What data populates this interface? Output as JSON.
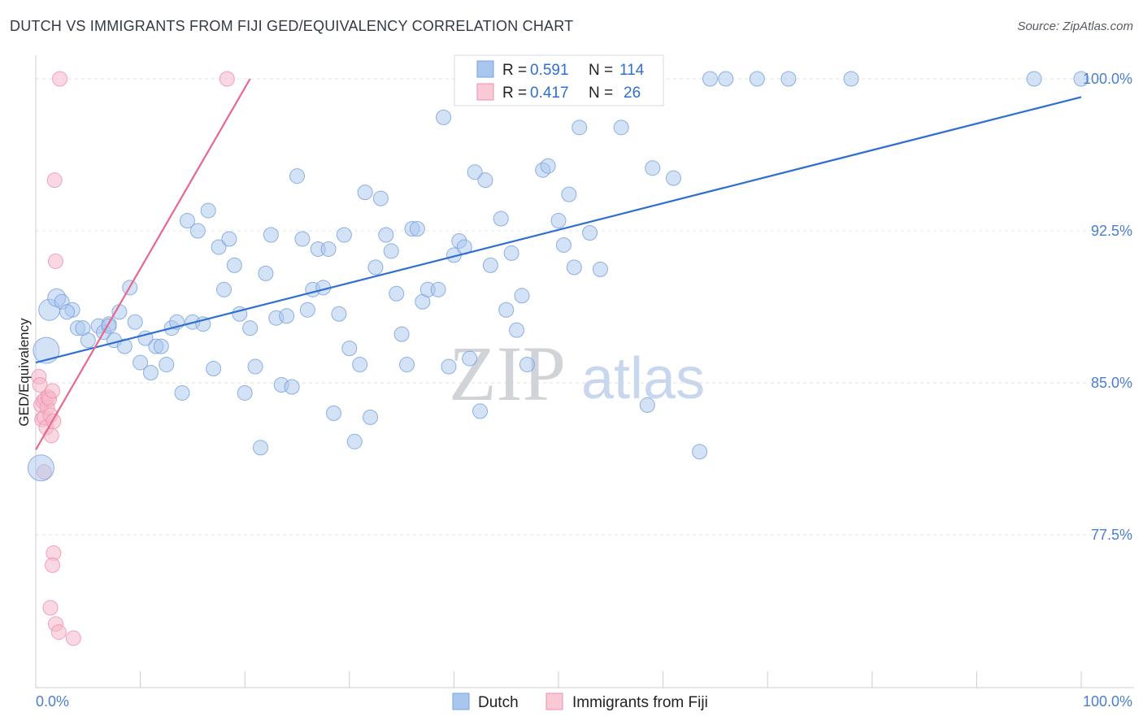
{
  "title": "DUTCH VS IMMIGRANTS FROM FIJI GED/EQUIVALENCY CORRELATION CHART",
  "source": "Source: ZipAtlas.com",
  "watermark": {
    "zip": "ZIP",
    "atlas": "atlas"
  },
  "legend": {
    "r_label": "R =",
    "n_label": "N =",
    "dutch": {
      "r": "0.591",
      "n": "114"
    },
    "fiji": {
      "r": "0.417",
      "n": "26"
    }
  },
  "bottom_legend": {
    "dutch": "Dutch",
    "fiji": "Immigrants from Fiji"
  },
  "chart_data": {
    "type": "scatter",
    "title": "DUTCH VS IMMIGRANTS FROM FIJI GED/EQUIVALENCY CORRELATION CHART",
    "xlabel": "",
    "ylabel": "GED/Equivalency",
    "xlim": [
      0,
      100
    ],
    "ylim": [
      70.5,
      101.2
    ],
    "x_tick_labels": [
      "0.0%",
      "100.0%"
    ],
    "y_ticks": [
      77.5,
      85.0,
      92.5,
      100.0
    ],
    "y_tick_labels": [
      "77.5%",
      "85.0%",
      "92.5%",
      "100.0%"
    ],
    "grid": true,
    "colors": {
      "dutch": "#a9c6ee",
      "dutch_edge": "#7aa3de",
      "dutch_line": "#2f6fd0",
      "fiji": "#f6b8ca",
      "fiji_edge": "#ee8fad",
      "fiji_line": "#e8678f"
    },
    "series": [
      {
        "name": "Dutch",
        "r": 0.591,
        "n": 114,
        "trend": {
          "x": [
            0,
            100
          ],
          "y": [
            86.0,
            99.1
          ]
        },
        "points": [
          [
            1,
            86.6,
            4
          ],
          [
            1.3,
            88.6,
            3
          ],
          [
            0.5,
            80.8,
            4
          ],
          [
            2,
            89.2,
            2
          ],
          [
            2.5,
            89.0,
            1
          ],
          [
            3.5,
            88.6,
            1
          ],
          [
            3,
            88.5,
            1
          ],
          [
            4,
            87.7,
            1
          ],
          [
            4.5,
            87.7,
            1
          ],
          [
            5,
            87.1,
            1
          ],
          [
            6,
            87.8,
            1
          ],
          [
            6.5,
            87.5,
            1
          ],
          [
            7,
            87.9,
            1
          ],
          [
            7,
            87.8,
            1
          ],
          [
            7.5,
            87.1,
            1
          ],
          [
            8,
            88.5,
            1
          ],
          [
            8.5,
            86.8,
            1
          ],
          [
            9,
            89.7,
            1
          ],
          [
            9.5,
            88.0,
            1
          ],
          [
            10,
            86.0,
            1
          ],
          [
            10.5,
            87.2,
            1
          ],
          [
            11,
            85.5,
            1
          ],
          [
            11.5,
            86.8,
            1
          ],
          [
            12,
            86.8,
            1
          ],
          [
            12.5,
            85.9,
            1
          ],
          [
            13,
            87.7,
            1
          ],
          [
            13.5,
            88.0,
            1
          ],
          [
            14,
            84.5,
            1
          ],
          [
            14.5,
            93.0,
            1
          ],
          [
            15,
            88.0,
            1
          ],
          [
            15.5,
            92.5,
            1
          ],
          [
            16,
            87.9,
            1
          ],
          [
            16.5,
            93.5,
            1
          ],
          [
            17,
            85.7,
            1
          ],
          [
            17.5,
            91.7,
            1
          ],
          [
            18,
            89.6,
            1
          ],
          [
            18.5,
            92.1,
            1
          ],
          [
            19,
            90.8,
            1
          ],
          [
            19.5,
            88.4,
            1
          ],
          [
            20,
            84.5,
            1
          ],
          [
            20.5,
            87.7,
            1
          ],
          [
            21,
            85.8,
            1
          ],
          [
            21.5,
            81.8,
            1
          ],
          [
            22,
            90.4,
            1
          ],
          [
            22.5,
            92.3,
            1
          ],
          [
            23,
            88.2,
            1
          ],
          [
            23.5,
            84.9,
            1
          ],
          [
            24,
            88.3,
            1
          ],
          [
            24.5,
            84.8,
            1
          ],
          [
            25,
            95.2,
            1
          ],
          [
            25.5,
            92.1,
            1
          ],
          [
            26,
            88.6,
            1
          ],
          [
            26.5,
            89.6,
            1
          ],
          [
            27,
            91.6,
            1
          ],
          [
            27.5,
            89.7,
            1
          ],
          [
            28,
            91.6,
            1
          ],
          [
            28.5,
            83.5,
            1
          ],
          [
            29,
            88.4,
            1
          ],
          [
            29.5,
            92.3,
            1
          ],
          [
            30,
            86.7,
            1
          ],
          [
            30.5,
            82.1,
            1
          ],
          [
            31,
            85.9,
            1
          ],
          [
            31.5,
            94.4,
            1
          ],
          [
            32,
            83.3,
            1
          ],
          [
            32.5,
            90.7,
            1
          ],
          [
            33,
            94.1,
            1
          ],
          [
            33.5,
            92.3,
            1
          ],
          [
            34,
            91.5,
            1
          ],
          [
            34.5,
            89.4,
            1
          ],
          [
            35,
            87.4,
            1
          ],
          [
            35.5,
            85.9,
            1
          ],
          [
            36,
            92.6,
            1
          ],
          [
            36.5,
            92.6,
            1
          ],
          [
            37,
            89.0,
            1
          ],
          [
            37.5,
            89.6,
            1
          ],
          [
            38.5,
            89.6,
            1
          ],
          [
            39,
            98.1,
            1
          ],
          [
            39.5,
            85.8,
            1
          ],
          [
            40,
            91.3,
            1
          ],
          [
            40.5,
            92.0,
            1
          ],
          [
            41,
            91.7,
            1
          ],
          [
            41.5,
            86.2,
            1
          ],
          [
            42,
            95.4,
            1
          ],
          [
            42.5,
            83.6,
            1
          ],
          [
            43,
            95.0,
            1
          ],
          [
            43.5,
            90.8,
            1
          ],
          [
            44.5,
            93.1,
            1
          ],
          [
            45,
            88.6,
            1
          ],
          [
            45.5,
            91.4,
            1
          ],
          [
            46,
            87.6,
            1
          ],
          [
            46.5,
            89.3,
            1
          ],
          [
            47,
            85.9,
            1
          ],
          [
            48.5,
            95.5,
            1
          ],
          [
            49,
            95.7,
            1
          ],
          [
            50,
            93.0,
            1
          ],
          [
            50.5,
            91.8,
            1
          ],
          [
            51,
            94.3,
            1
          ],
          [
            51.5,
            90.7,
            1
          ],
          [
            52,
            97.6,
            1
          ],
          [
            53,
            92.4,
            1
          ],
          [
            54,
            90.6,
            1
          ],
          [
            56,
            97.6,
            1
          ],
          [
            58.5,
            83.9,
            1
          ],
          [
            59,
            95.6,
            1
          ],
          [
            61,
            95.1,
            1
          ],
          [
            63.5,
            81.6,
            1
          ],
          [
            64.5,
            100.0,
            1
          ],
          [
            66,
            100.0,
            1
          ],
          [
            69,
            100.0,
            1
          ],
          [
            72,
            100.0,
            1
          ],
          [
            78,
            100.0,
            1
          ],
          [
            100,
            100.0,
            1
          ],
          [
            95.5,
            100.0,
            1
          ]
        ]
      },
      {
        "name": "Immigrants from Fiji",
        "r": 0.417,
        "n": 26,
        "trend": {
          "x": [
            0,
            20.5
          ],
          "y": [
            81.7,
            100.0
          ]
        },
        "points": [
          [
            0.3,
            85.3,
            1
          ],
          [
            0.4,
            84.9,
            1
          ],
          [
            0.5,
            83.9,
            1
          ],
          [
            0.6,
            83.2,
            1
          ],
          [
            0.7,
            84.1,
            1
          ],
          [
            0.8,
            83.3,
            1
          ],
          [
            0.9,
            84.2,
            1
          ],
          [
            1.0,
            82.8,
            1
          ],
          [
            1.1,
            83.8,
            1
          ],
          [
            1.2,
            84.3,
            1
          ],
          [
            1.3,
            84.2,
            1
          ],
          [
            1.4,
            83.4,
            1
          ],
          [
            1.5,
            82.4,
            1
          ],
          [
            1.6,
            84.6,
            1
          ],
          [
            1.7,
            83.1,
            1
          ],
          [
            1.8,
            95.0,
            1
          ],
          [
            1.9,
            91.0,
            1
          ],
          [
            0.8,
            80.6,
            1
          ],
          [
            1.7,
            76.6,
            1
          ],
          [
            1.6,
            76.0,
            1
          ],
          [
            1.4,
            73.9,
            1
          ],
          [
            1.9,
            73.1,
            1
          ],
          [
            2.2,
            72.7,
            1
          ],
          [
            3.6,
            72.4,
            1
          ],
          [
            2.3,
            100.0,
            1
          ],
          [
            18.3,
            100.0,
            1
          ]
        ]
      }
    ]
  }
}
